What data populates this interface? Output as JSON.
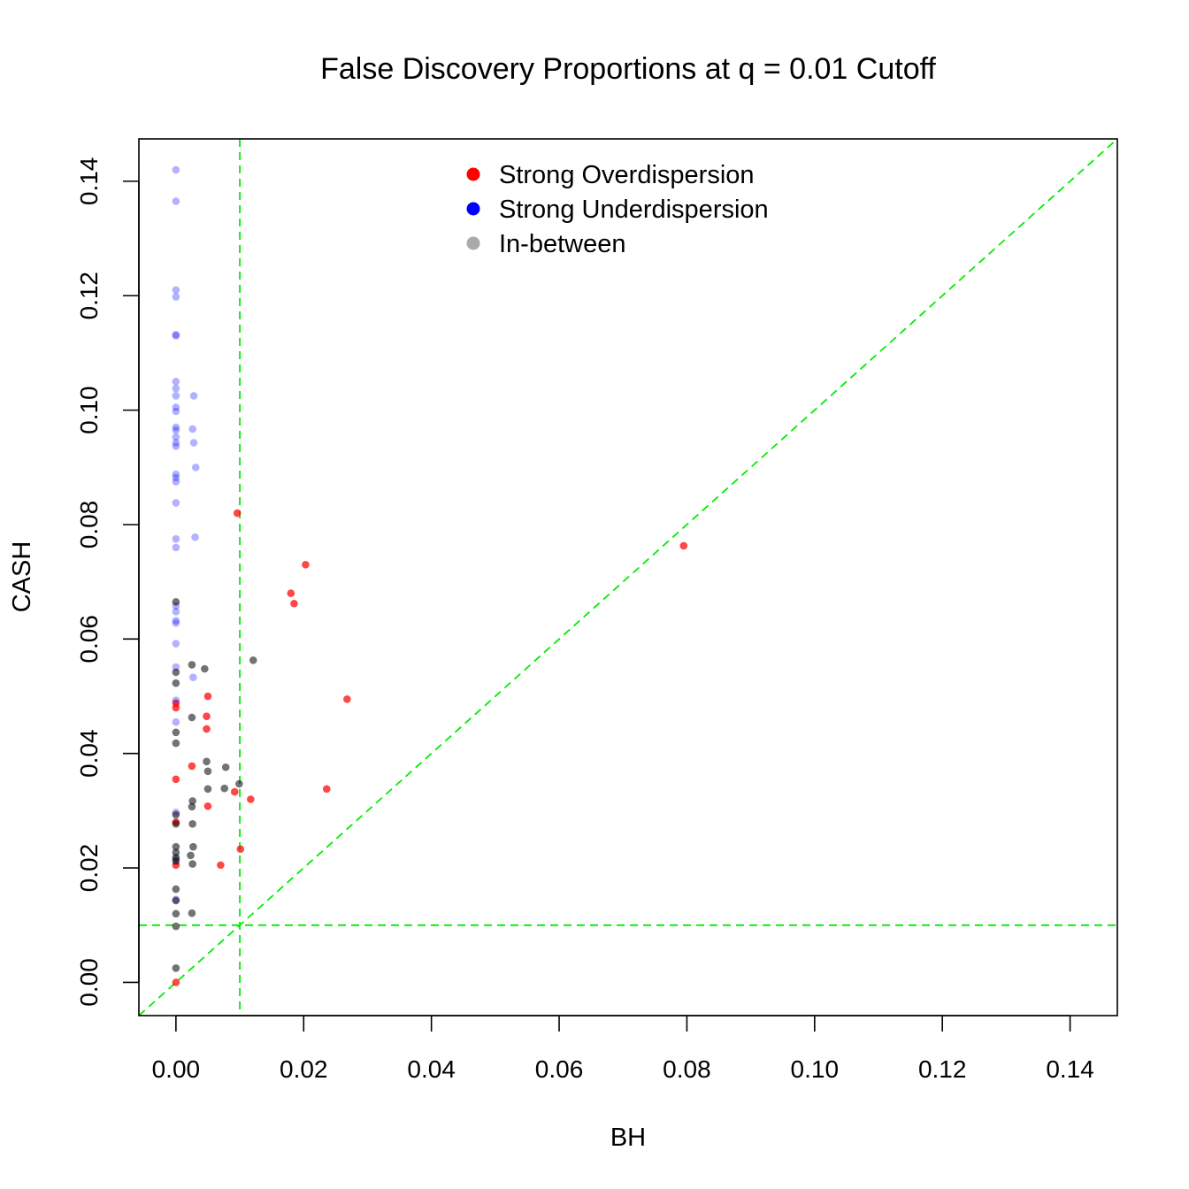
{
  "chart_data": {
    "type": "scatter",
    "title": "False Discovery Proportions at q = 0.01 Cutoff",
    "xlabel": "BH",
    "ylabel": "CASH",
    "xlim": [
      -0.0058,
      0.1474
    ],
    "ylim": [
      -0.0058,
      0.1474
    ],
    "x_ticks": [
      {
        "value": 0.0,
        "label": "0.00"
      },
      {
        "value": 0.02,
        "label": "0.02"
      },
      {
        "value": 0.04,
        "label": "0.04"
      },
      {
        "value": 0.06,
        "label": "0.06"
      },
      {
        "value": 0.08,
        "label": "0.08"
      },
      {
        "value": 0.1,
        "label": "0.10"
      },
      {
        "value": 0.12,
        "label": "0.12"
      },
      {
        "value": 0.14,
        "label": "0.14"
      }
    ],
    "y_ticks": [
      {
        "value": 0.0,
        "label": "0.00"
      },
      {
        "value": 0.02,
        "label": "0.02"
      },
      {
        "value": 0.04,
        "label": "0.04"
      },
      {
        "value": 0.06,
        "label": "0.06"
      },
      {
        "value": 0.08,
        "label": "0.08"
      },
      {
        "value": 0.1,
        "label": "0.10"
      },
      {
        "value": 0.12,
        "label": "0.12"
      },
      {
        "value": 0.14,
        "label": "0.14"
      }
    ],
    "grid": false,
    "legend_position": "top-center",
    "reference_lines": {
      "color": "#00ee00",
      "style": "dashed",
      "vertical_x": 0.01,
      "horizontal_y": 0.01,
      "diagonal": "y = x"
    },
    "series": [
      {
        "name": "Strong Overdispersion",
        "color": "#ff0000",
        "points": [
          {
            "x": 0.0,
            "y": 0.0
          },
          {
            "x": 0.0,
            "y": 0.0205
          },
          {
            "x": 0.0,
            "y": 0.028
          },
          {
            "x": 0.0,
            "y": 0.0355
          },
          {
            "x": 0.0,
            "y": 0.048
          },
          {
            "x": 0.0,
            "y": 0.0488
          },
          {
            "x": 0.0025,
            "y": 0.0378
          },
          {
            "x": 0.005,
            "y": 0.05
          },
          {
            "x": 0.0048,
            "y": 0.0465
          },
          {
            "x": 0.0048,
            "y": 0.0443
          },
          {
            "x": 0.005,
            "y": 0.0308
          },
          {
            "x": 0.007,
            "y": 0.0205
          },
          {
            "x": 0.0092,
            "y": 0.0333
          },
          {
            "x": 0.0096,
            "y": 0.082
          },
          {
            "x": 0.0101,
            "y": 0.0233
          },
          {
            "x": 0.0117,
            "y": 0.032
          },
          {
            "x": 0.018,
            "y": 0.068
          },
          {
            "x": 0.0185,
            "y": 0.0662
          },
          {
            "x": 0.0203,
            "y": 0.073
          },
          {
            "x": 0.0236,
            "y": 0.0338
          },
          {
            "x": 0.0268,
            "y": 0.0495
          },
          {
            "x": 0.0795,
            "y": 0.0763
          }
        ]
      },
      {
        "name": "Strong Underdispersion",
        "color": "#0000ff",
        "points": [
          {
            "x": 0.0,
            "y": 0.142
          },
          {
            "x": 0.0,
            "y": 0.1365
          },
          {
            "x": 0.0,
            "y": 0.121
          },
          {
            "x": 0.0,
            "y": 0.1198
          },
          {
            "x": 0.0,
            "y": 0.1132
          },
          {
            "x": 0.0,
            "y": 0.113
          },
          {
            "x": 0.0,
            "y": 0.105
          },
          {
            "x": 0.0,
            "y": 0.1038
          },
          {
            "x": 0.0,
            "y": 0.1025
          },
          {
            "x": 0.0,
            "y": 0.1005
          },
          {
            "x": 0.0,
            "y": 0.0998
          },
          {
            "x": 0.0,
            "y": 0.097
          },
          {
            "x": 0.0,
            "y": 0.0965
          },
          {
            "x": 0.0,
            "y": 0.0953
          },
          {
            "x": 0.0,
            "y": 0.0943
          },
          {
            "x": 0.0,
            "y": 0.0937
          },
          {
            "x": 0.0,
            "y": 0.0888
          },
          {
            "x": 0.0,
            "y": 0.0882
          },
          {
            "x": 0.0,
            "y": 0.0875
          },
          {
            "x": 0.0,
            "y": 0.0838
          },
          {
            "x": 0.0,
            "y": 0.0775
          },
          {
            "x": 0.0,
            "y": 0.076
          },
          {
            "x": 0.0,
            "y": 0.0658
          },
          {
            "x": 0.0,
            "y": 0.0648
          },
          {
            "x": 0.0,
            "y": 0.0632
          },
          {
            "x": 0.0,
            "y": 0.0628
          },
          {
            "x": 0.0,
            "y": 0.0592
          },
          {
            "x": 0.0,
            "y": 0.0551
          },
          {
            "x": 0.0,
            "y": 0.0493
          },
          {
            "x": 0.0,
            "y": 0.0455
          },
          {
            "x": 0.0,
            "y": 0.0297
          },
          {
            "x": 0.0,
            "y": 0.0215
          },
          {
            "x": 0.0,
            "y": 0.0145
          },
          {
            "x": 0.0028,
            "y": 0.1025
          },
          {
            "x": 0.0026,
            "y": 0.0967
          },
          {
            "x": 0.0028,
            "y": 0.0943
          },
          {
            "x": 0.0031,
            "y": 0.09
          },
          {
            "x": 0.003,
            "y": 0.0778
          },
          {
            "x": 0.0027,
            "y": 0.0533
          }
        ]
      },
      {
        "name": "In-between",
        "color": "#999999",
        "points": [
          {
            "x": 0.0,
            "y": 0.0665
          },
          {
            "x": 0.0,
            "y": 0.0542
          },
          {
            "x": 0.0,
            "y": 0.0523
          },
          {
            "x": 0.0,
            "y": 0.0437
          },
          {
            "x": 0.0,
            "y": 0.0418
          },
          {
            "x": 0.0,
            "y": 0.0293
          },
          {
            "x": 0.0,
            "y": 0.0277
          },
          {
            "x": 0.0,
            "y": 0.0237
          },
          {
            "x": 0.0,
            "y": 0.0227
          },
          {
            "x": 0.0,
            "y": 0.0218
          },
          {
            "x": 0.0,
            "y": 0.0212
          },
          {
            "x": 0.0,
            "y": 0.0163
          },
          {
            "x": 0.0,
            "y": 0.0143
          },
          {
            "x": 0.0,
            "y": 0.012
          },
          {
            "x": 0.0,
            "y": 0.0098
          },
          {
            "x": 0.0,
            "y": 0.0025
          },
          {
            "x": 0.0025,
            "y": 0.0555
          },
          {
            "x": 0.0045,
            "y": 0.0548
          },
          {
            "x": 0.0025,
            "y": 0.0463
          },
          {
            "x": 0.0048,
            "y": 0.0386
          },
          {
            "x": 0.005,
            "y": 0.0369
          },
          {
            "x": 0.005,
            "y": 0.0338
          },
          {
            "x": 0.0078,
            "y": 0.0376
          },
          {
            "x": 0.0076,
            "y": 0.0339
          },
          {
            "x": 0.0099,
            "y": 0.0347
          },
          {
            "x": 0.0026,
            "y": 0.0317
          },
          {
            "x": 0.0025,
            "y": 0.0307
          },
          {
            "x": 0.0026,
            "y": 0.0277
          },
          {
            "x": 0.0027,
            "y": 0.0237
          },
          {
            "x": 0.0023,
            "y": 0.0222
          },
          {
            "x": 0.0026,
            "y": 0.0207
          },
          {
            "x": 0.0025,
            "y": 0.0121
          },
          {
            "x": 0.0121,
            "y": 0.0563
          }
        ]
      }
    ]
  }
}
